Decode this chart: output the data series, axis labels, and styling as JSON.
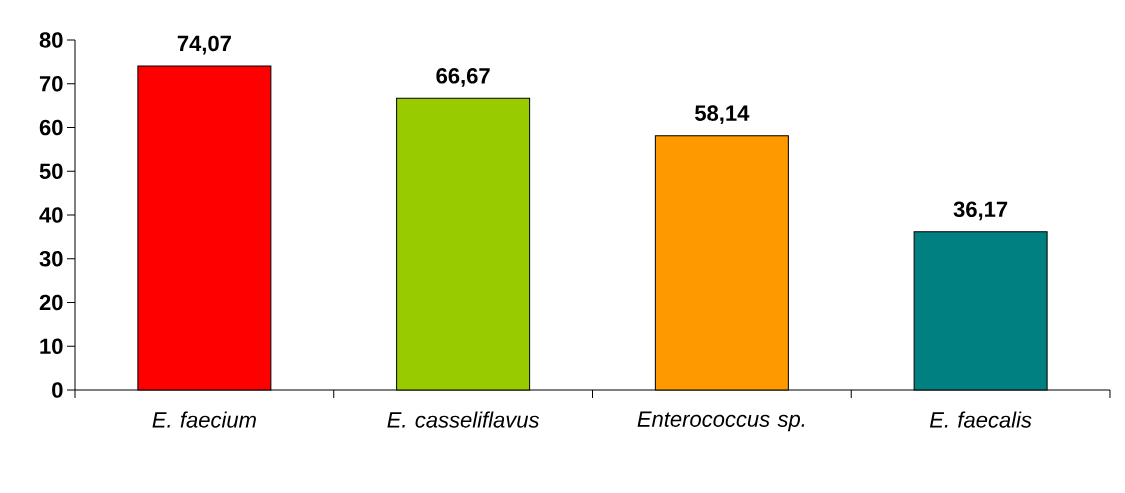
{
  "chart_data": {
    "type": "bar",
    "categories": [
      "E. faecium",
      "E. casseliflavus",
      "Enterococcus sp.",
      "E. faecalis"
    ],
    "values": [
      74.07,
      66.67,
      58.14,
      36.17
    ],
    "value_labels": [
      "74,07",
      "66,67",
      "58,14",
      "36,17"
    ],
    "colors": [
      "#ff0000",
      "#99cc00",
      "#ff9900",
      "#008080"
    ],
    "ylim": [
      0,
      80
    ],
    "yticks": [
      0,
      10,
      20,
      30,
      40,
      50,
      60,
      70,
      80
    ],
    "grid": false
  }
}
